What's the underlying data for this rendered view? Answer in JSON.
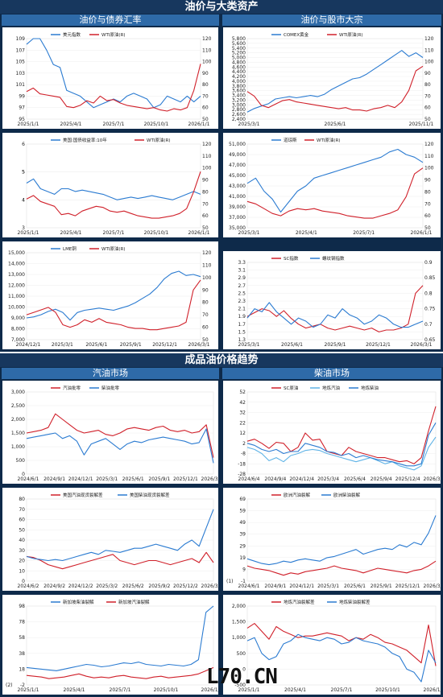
{
  "header": {
    "title_top": "油价与大类资产",
    "sub_left_top": "油价与债券汇率",
    "sub_right_top": "油价与股市大宗",
    "title_mid": "成品油价格趋势",
    "sub_left_mid": "汽油市场",
    "sub_right_mid": "柴油市场"
  },
  "watermark": "L70.CN",
  "colors": {
    "blue": "#2b7bd1",
    "red": "#d0202a",
    "light": "#5fb3e6",
    "frame": "#0e2a4a",
    "banner": "#17375e",
    "sub": "#2e6aa8"
  },
  "chart_data": [
    {
      "id": "c1",
      "type": "line",
      "x_ticks": [
        "2025/1/1",
        "2025/4/1",
        "2025/7/1",
        "2025/10/1",
        "2026/1/1"
      ],
      "y_left": [
        95,
        97,
        99,
        101,
        103,
        105,
        107,
        109
      ],
      "y_right": [
        50,
        60,
        70,
        80,
        90,
        100,
        110,
        120
      ],
      "series": [
        {
          "name": "美元指数",
          "axis": "left",
          "color": "blue",
          "values": [
            108,
            109.5,
            109,
            107,
            104.5,
            104,
            100,
            99.5,
            99,
            98,
            97,
            97.5,
            98,
            98.5,
            98,
            99,
            99.5,
            99,
            98.5,
            97,
            97.5,
            99,
            98.5,
            98,
            99,
            98,
            99
          ]
        },
        {
          "name": "WTI原油(R)",
          "axis": "right",
          "color": "red",
          "values": [
            74,
            77,
            72,
            71,
            70,
            69,
            61,
            60,
            62,
            66,
            64,
            70,
            66,
            67,
            64,
            62,
            61,
            60,
            59,
            60,
            58,
            57,
            59,
            58,
            60,
            75,
            98
          ]
        }
      ]
    },
    {
      "id": "c2",
      "type": "line",
      "x_ticks": [
        "2025/3/1",
        "2025/6/1",
        "2025/11/1"
      ],
      "y_left": [
        2400,
        2600,
        2800,
        3000,
        3200,
        3400,
        3600,
        3800,
        4000,
        4200,
        4400,
        4600,
        4800,
        5000,
        5200,
        5400,
        5600,
        5800
      ],
      "y_right": [
        50,
        60,
        70,
        80,
        90,
        100,
        110,
        120
      ],
      "series": [
        {
          "name": "COMEX黄金",
          "axis": "left",
          "color": "blue",
          "values": [
            2700,
            2850,
            2950,
            3050,
            3250,
            3300,
            3350,
            3300,
            3350,
            3400,
            3350,
            3450,
            3650,
            3800,
            3950,
            4100,
            4150,
            4300,
            4500,
            4700,
            4900,
            5100,
            5300,
            5050,
            5200,
            5000
          ]
        },
        {
          "name": "WTI原油(R)",
          "axis": "right",
          "color": "red",
          "values": [
            74,
            70,
            62,
            60,
            63,
            66,
            67,
            65,
            64,
            63,
            62,
            61,
            60,
            59,
            60,
            58,
            58,
            57,
            59,
            60,
            62,
            60,
            65,
            75,
            92,
            96
          ]
        }
      ]
    },
    {
      "id": "c3",
      "type": "line",
      "x_ticks": [
        "2025/1/1",
        "2025/4/1",
        "2025/7/1",
        "2025/10/1",
        "2026/1/1"
      ],
      "y_left": [
        3,
        4,
        4,
        5,
        5,
        6
      ],
      "y_right": [
        50,
        60,
        70,
        80,
        90,
        100,
        110,
        120
      ],
      "series": [
        {
          "name": "美国:国债收益率:10年",
          "axis": "left",
          "color": "blue",
          "values": [
            4.6,
            4.75,
            4.4,
            4.3,
            4.2,
            4.4,
            4.4,
            4.3,
            4.35,
            4.3,
            4.25,
            4.2,
            4.1,
            4.0,
            4.05,
            4.1,
            4.05,
            4.1,
            4.15,
            4.1,
            4.05,
            4.0,
            4.1,
            4.2,
            4.3,
            4.2
          ]
        },
        {
          "name": "WTI原油(R)",
          "axis": "right",
          "color": "red",
          "values": [
            74,
            77,
            72,
            70,
            68,
            61,
            62,
            60,
            64,
            66,
            68,
            67,
            64,
            63,
            64,
            62,
            60,
            59,
            58,
            58,
            59,
            60,
            62,
            66,
            80,
            97
          ]
        }
      ]
    },
    {
      "id": "c4",
      "type": "line",
      "x_ticks": [
        "2025/3/1",
        "2025/4/1",
        "2025/7/1",
        "2026/1/1"
      ],
      "y_left": [
        35000,
        37000,
        39000,
        41000,
        43000,
        45000,
        47000,
        49000,
        51000
      ],
      "y_right": [
        50,
        60,
        70,
        80,
        90,
        100,
        110,
        120
      ],
      "series": [
        {
          "name": "道琼斯",
          "axis": "left",
          "color": "blue",
          "values": [
            43500,
            44500,
            42000,
            40500,
            38000,
            40000,
            42000,
            43000,
            44500,
            45000,
            45500,
            46000,
            46500,
            47000,
            47500,
            48000,
            48500,
            49500,
            50000,
            49000,
            48500,
            47500
          ]
        },
        {
          "name": "WTI原油(R)",
          "axis": "right",
          "color": "red",
          "values": [
            72,
            70,
            66,
            62,
            60,
            64,
            66,
            65,
            66,
            64,
            63,
            62,
            60,
            59,
            58,
            58,
            60,
            62,
            65,
            76,
            95,
            100
          ]
        }
      ]
    },
    {
      "id": "c5",
      "type": "line",
      "x_ticks": [
        "2024/12/1",
        "2025/3/1",
        "2025/6/1",
        "2025/9/1",
        "2025/12/1",
        "2026/3/1"
      ],
      "y_left": [
        7000,
        8000,
        9000,
        10000,
        11000,
        12000,
        13000,
        14000,
        15000
      ],
      "y_right": [
        50,
        60,
        70,
        80,
        90,
        100,
        110,
        120
      ],
      "series": [
        {
          "name": "LME铜",
          "axis": "left",
          "color": "blue",
          "values": [
            9000,
            9100,
            9300,
            9600,
            9800,
            9500,
            8800,
            9500,
            9700,
            9800,
            9900,
            9800,
            9700,
            9900,
            10100,
            10400,
            10800,
            11200,
            11800,
            12600,
            13100,
            13300,
            12900,
            13000,
            12800
          ]
        },
        {
          "name": "WTI原油(R)",
          "axis": "right",
          "color": "red",
          "values": [
            70,
            72,
            74,
            76,
            72,
            62,
            60,
            62,
            66,
            64,
            67,
            64,
            63,
            62,
            60,
            59,
            59,
            58,
            58,
            59,
            60,
            61,
            64,
            90,
            98
          ]
        }
      ]
    },
    {
      "id": "c6",
      "type": "line",
      "x_ticks": [
        "2025/3/1",
        "2025/6/1",
        "2025/9/1",
        "2025/12/1",
        "2026/3/1"
      ],
      "y_left": [
        1.3,
        1.5,
        1.7,
        1.9,
        2.1,
        2.3,
        2.5,
        2.7,
        2.9,
        3.1,
        3.3
      ],
      "y_right": [
        0.65,
        0.7,
        0.75,
        0.8,
        0.85,
        0.9
      ],
      "series": [
        {
          "name": "SC指数",
          "axis": "left",
          "color": "red",
          "values": [
            1.9,
            2.0,
            2.1,
            2.05,
            1.9,
            2.05,
            1.85,
            1.7,
            1.6,
            1.65,
            1.7,
            1.6,
            1.55,
            1.6,
            1.65,
            1.6,
            1.55,
            1.6,
            1.5,
            1.55,
            1.55,
            1.6,
            1.7,
            2.5,
            2.7
          ]
        },
        {
          "name": "螺纹钢指数",
          "axis": "right",
          "color": "blue",
          "values": [
            0.72,
            0.75,
            0.74,
            0.77,
            0.74,
            0.72,
            0.7,
            0.72,
            0.71,
            0.69,
            0.7,
            0.73,
            0.72,
            0.75,
            0.73,
            0.72,
            0.7,
            0.71,
            0.73,
            0.72,
            0.7,
            0.69,
            0.69,
            0.7,
            0.71
          ]
        }
      ]
    },
    {
      "id": "c7",
      "type": "line",
      "x_ticks": [
        "2024/6/1",
        "2024/9/1",
        "2024/12/1",
        "2025/3/1",
        "2025/6/1",
        "2025/9/1",
        "2025/12/1",
        "2026/3/1"
      ],
      "y_left": [
        0,
        500,
        1000,
        1500,
        2000,
        2500,
        3000
      ],
      "series": [
        {
          "name": "汽油批零",
          "axis": "left",
          "color": "red",
          "values": [
            1500,
            1550,
            1600,
            1700,
            2200,
            2000,
            1800,
            1600,
            1500,
            1550,
            1600,
            1450,
            1400,
            1500,
            1650,
            1700,
            1650,
            1600,
            1700,
            1750,
            1600,
            1550,
            1600,
            1500,
            1550,
            1800,
            600
          ]
        },
        {
          "name": "柴油批零",
          "axis": "left",
          "color": "blue",
          "values": [
            1300,
            1350,
            1400,
            1450,
            1500,
            1300,
            1400,
            1200,
            700,
            1100,
            1200,
            1300,
            1100,
            900,
            1100,
            1200,
            1150,
            1250,
            1300,
            1350,
            1300,
            1250,
            1200,
            1100,
            1150,
            1650,
            400
          ]
        }
      ]
    },
    {
      "id": "c8",
      "type": "line",
      "x_ticks": [
        "2024/6/4",
        "2024/9/4",
        "2024/12/4",
        "2025/3/4",
        "2025/6/4",
        "2025/9/4",
        "2025/12/4",
        "2026/3/4"
      ],
      "y_left": [
        -28,
        -18,
        -8,
        2,
        12,
        22,
        32,
        42,
        52
      ],
      "series": [
        {
          "name": "SC原油",
          "axis": "left",
          "color": "red",
          "values": [
            4,
            6,
            2,
            -3,
            3,
            2,
            -6,
            -2,
            12,
            5,
            6,
            -6,
            -8,
            -10,
            -2,
            -6,
            -8,
            -10,
            -12,
            -12,
            -14,
            -16,
            -15,
            -18,
            -12,
            14,
            38
          ]
        },
        {
          "name": "地炼汽油",
          "axis": "left",
          "color": "light",
          "values": [
            -2,
            -4,
            -8,
            -15,
            -12,
            -16,
            -10,
            -8,
            -5,
            -4,
            -5,
            -8,
            -10,
            -12,
            -14,
            -16,
            -14,
            -12,
            -15,
            -18,
            -16,
            -20,
            -22,
            -24,
            -20,
            -2,
            8
          ]
        },
        {
          "name": "地炼柴油",
          "axis": "left",
          "color": "blue",
          "values": [
            2,
            0,
            -4,
            -6,
            -4,
            -8,
            -6,
            -6,
            2,
            0,
            -2,
            -6,
            -7,
            -10,
            -8,
            -12,
            -10,
            -12,
            -14,
            -15,
            -16,
            -18,
            -20,
            -20,
            -18,
            10,
            22
          ]
        }
      ]
    },
    {
      "id": "c9",
      "type": "line",
      "x_ticks": [
        "2024/6/2",
        "2024/9/2",
        "2024/12/2",
        "2025/3/2",
        "2025/6/2",
        "2025/9/2",
        "2025/12/2",
        "2026/3/2"
      ],
      "y_left": [
        0,
        10,
        20,
        30,
        40,
        50,
        60,
        70,
        80
      ],
      "series": [
        {
          "name": "美国汽油现货裂解差",
          "axis": "left",
          "color": "red",
          "values": [
            24,
            23,
            20,
            16,
            14,
            12,
            14,
            16,
            18,
            20,
            22,
            24,
            26,
            20,
            18,
            16,
            18,
            20,
            20,
            18,
            16,
            18,
            20,
            22,
            18,
            28,
            18
          ]
        },
        {
          "name": "美国柴油现货裂解差",
          "axis": "left",
          "color": "blue",
          "values": [
            24,
            22,
            21,
            20,
            21,
            20,
            22,
            24,
            26,
            28,
            26,
            30,
            29,
            28,
            30,
            32,
            32,
            34,
            36,
            34,
            32,
            30,
            36,
            40,
            34,
            52,
            70
          ]
        }
      ]
    },
    {
      "id": "c10",
      "type": "line",
      "x_ticks": [
        "2024/6/1",
        "2024/9/1",
        "2024/12/1",
        "2025/3/1",
        "2025/6/1",
        "2025/9/1",
        "2025/12/1",
        "2026/3/1"
      ],
      "y_left": [
        -1,
        9,
        19,
        29,
        39,
        49,
        59,
        69
      ],
      "series": [
        {
          "name": "欧洲汽油裂解",
          "axis": "left",
          "color": "red",
          "values": [
            12,
            10,
            9,
            8,
            6,
            4,
            6,
            5,
            7,
            8,
            9,
            10,
            12,
            10,
            9,
            8,
            6,
            8,
            10,
            9,
            8,
            7,
            6,
            8,
            9,
            12,
            16
          ]
        },
        {
          "name": "欧洲柴油裂解",
          "axis": "left",
          "color": "blue",
          "values": [
            18,
            16,
            14,
            13,
            14,
            16,
            15,
            17,
            18,
            17,
            16,
            19,
            20,
            22,
            24,
            26,
            22,
            24,
            26,
            27,
            26,
            30,
            28,
            32,
            30,
            40,
            55
          ]
        }
      ]
    },
    {
      "id": "c11",
      "type": "line",
      "x_ticks": [
        "2025/1/1",
        "2025/4/1",
        "2025/7/1",
        "2025/10/1",
        "2026/1/1"
      ],
      "y_left": [
        -2,
        18,
        38,
        58,
        78,
        98
      ],
      "series": [
        {
          "name": "新加坡柴油裂解",
          "axis": "left",
          "color": "blue",
          "values": [
            20,
            19,
            18,
            17,
            16,
            18,
            20,
            22,
            24,
            23,
            21,
            22,
            24,
            26,
            25,
            27,
            24,
            23,
            22,
            24,
            23,
            22,
            24,
            30,
            90,
            98
          ]
        },
        {
          "name": "新加坡汽油裂解",
          "axis": "left",
          "color": "red",
          "values": [
            10,
            9,
            8,
            6,
            7,
            8,
            10,
            12,
            9,
            7,
            8,
            7,
            9,
            10,
            8,
            7,
            6,
            8,
            9,
            7,
            8,
            9,
            10,
            12,
            16,
            20
          ]
        }
      ]
    },
    {
      "id": "c12",
      "type": "line",
      "x_ticks": [
        "2025/1/1",
        "2025/4/1",
        "2025/7/1",
        "2025/10/1",
        "2026/1/1"
      ],
      "y_left": [
        -500,
        0,
        500,
        1000,
        1500,
        2000
      ],
      "series": [
        {
          "name": "地炼汽油裂解差",
          "axis": "left",
          "color": "red",
          "values": [
            1300,
            1450,
            1200,
            950,
            1350,
            1200,
            1100,
            1000,
            1050,
            1050,
            1100,
            1150,
            1100,
            1050,
            900,
            1000,
            950,
            1100,
            1000,
            850,
            800,
            700,
            600,
            400,
            200,
            1400,
            100
          ]
        },
        {
          "name": "地炼柴油裂解差",
          "axis": "left",
          "color": "blue",
          "values": [
            900,
            1000,
            500,
            300,
            400,
            800,
            900,
            1100,
            1000,
            950,
            900,
            1000,
            950,
            800,
            850,
            1000,
            900,
            850,
            800,
            700,
            500,
            400,
            0,
            -100,
            -400,
            600,
            200
          ]
        }
      ]
    }
  ],
  "footnotes": {
    "c10": "(1)",
    "c11": "(2)"
  }
}
